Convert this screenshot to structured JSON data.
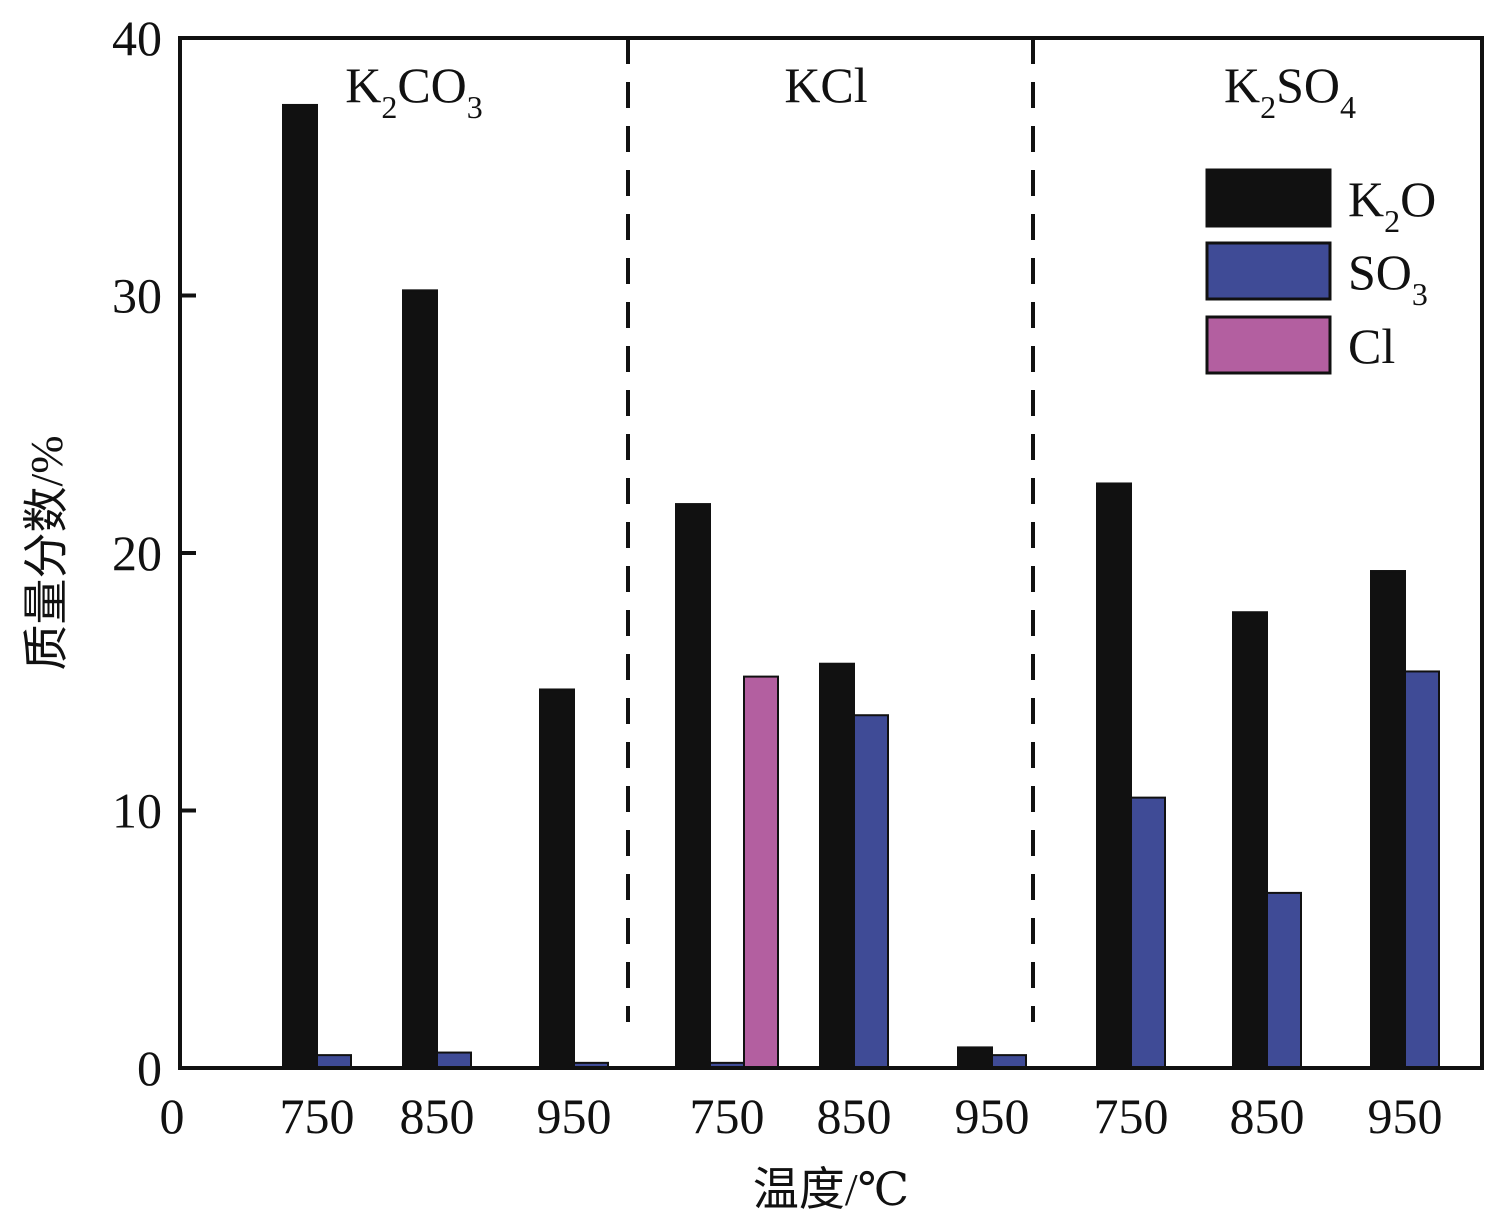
{
  "chart_data": {
    "type": "bar",
    "xlabel": "温度/℃",
    "ylabel": "质量分数/%",
    "ylim": [
      0,
      40
    ],
    "yticks": [
      0,
      10,
      20,
      30,
      40
    ],
    "x_origin_label": "0",
    "groups": [
      {
        "label_main": "K",
        "label_sub1": "2",
        "label_mid": "CO",
        "label_sub2": "3",
        "categories": [
          "750",
          "850",
          "950"
        ]
      },
      {
        "label_main": "KCl",
        "label_sub1": "",
        "label_mid": "",
        "label_sub2": "",
        "categories": [
          "750",
          "850",
          "950"
        ]
      },
      {
        "label_main": "K",
        "label_sub1": "2",
        "label_mid": "SO",
        "label_sub2": "4",
        "categories": [
          "750",
          "850",
          "950"
        ]
      }
    ],
    "series": [
      {
        "name_main": "K",
        "name_sub": "2",
        "name_tail": "O",
        "color": "#111111",
        "values": [
          37.4,
          30.2,
          14.7,
          21.9,
          15.7,
          0.8,
          22.7,
          17.7,
          19.3
        ]
      },
      {
        "name_main": "SO",
        "name_sub": "3",
        "name_tail": "",
        "color": "#3f4b96",
        "values": [
          0.5,
          0.6,
          0.2,
          0.2,
          13.7,
          0.5,
          10.5,
          6.8,
          15.4
        ]
      },
      {
        "name_main": "Cl",
        "name_sub": "",
        "name_tail": "",
        "color": "#b35fa0",
        "values": [
          0,
          0,
          0,
          15.2,
          0,
          0,
          0,
          0,
          0
        ]
      }
    ],
    "grid": false,
    "group_separators": "dashed",
    "legend_position": "top-right"
  }
}
